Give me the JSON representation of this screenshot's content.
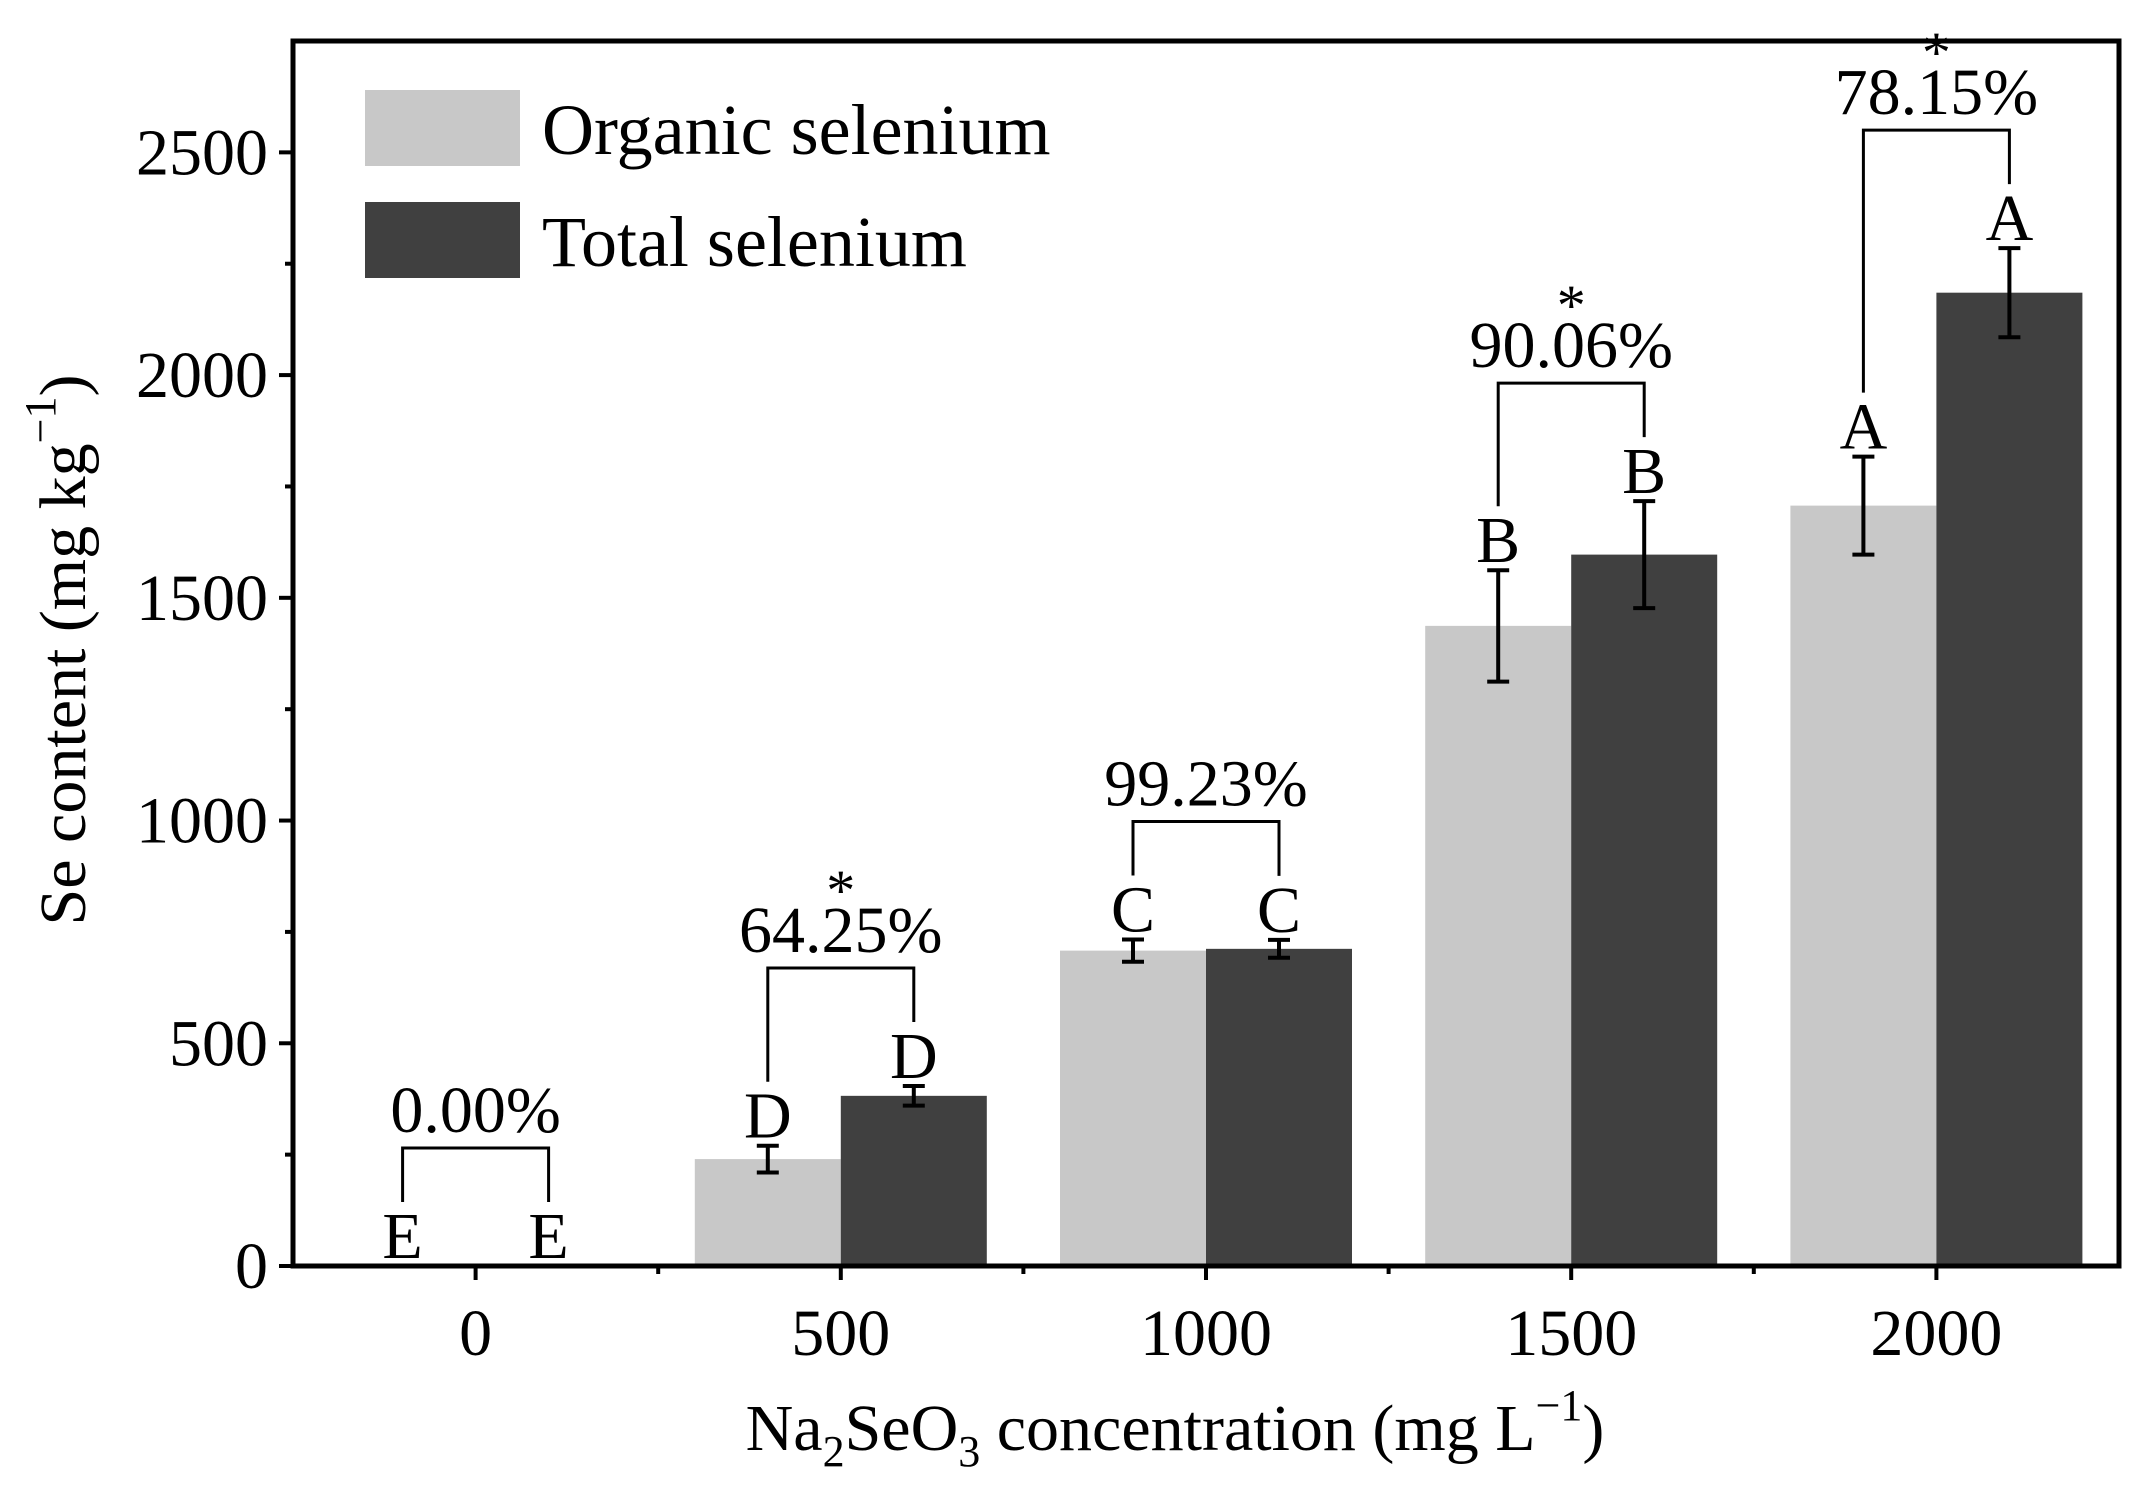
{
  "chart_data": {
    "type": "bar",
    "xlabel_parts": [
      "Na",
      "2",
      "SeO",
      "3",
      " concentration (mg L",
      "−1",
      ")"
    ],
    "ylabel_parts": [
      "Se content (mg kg",
      "−1",
      ")"
    ],
    "ylim": [
      0,
      2750
    ],
    "yticks": [
      0,
      500,
      1000,
      1500,
      2000,
      2500
    ],
    "categories": [
      "0",
      "500",
      "1000",
      "1500",
      "2000"
    ],
    "series": [
      {
        "name": "Organic selenium",
        "color": "#c8c8c8",
        "values": [
          0,
          240,
          708,
          1437,
          1707
        ],
        "errors": [
          0,
          30,
          25,
          125,
          110
        ],
        "letters": [
          "E",
          "D",
          "C",
          "B",
          "A"
        ]
      },
      {
        "name": "Total selenium",
        "color": "#404040",
        "values": [
          0,
          382,
          712,
          1597,
          2185
        ],
        "errors": [
          0,
          22,
          20,
          120,
          100
        ],
        "letters": [
          "E",
          "D",
          "C",
          "B",
          "A"
        ]
      }
    ],
    "comparisons": [
      {
        "label": "0.00%",
        "star": ""
      },
      {
        "label": "64.25%",
        "star": "*"
      },
      {
        "label": "99.23%",
        "star": ""
      },
      {
        "label": "90.06%",
        "star": "*"
      },
      {
        "label": "78.15%",
        "star": "*"
      }
    ],
    "legend_position": "top-left"
  }
}
